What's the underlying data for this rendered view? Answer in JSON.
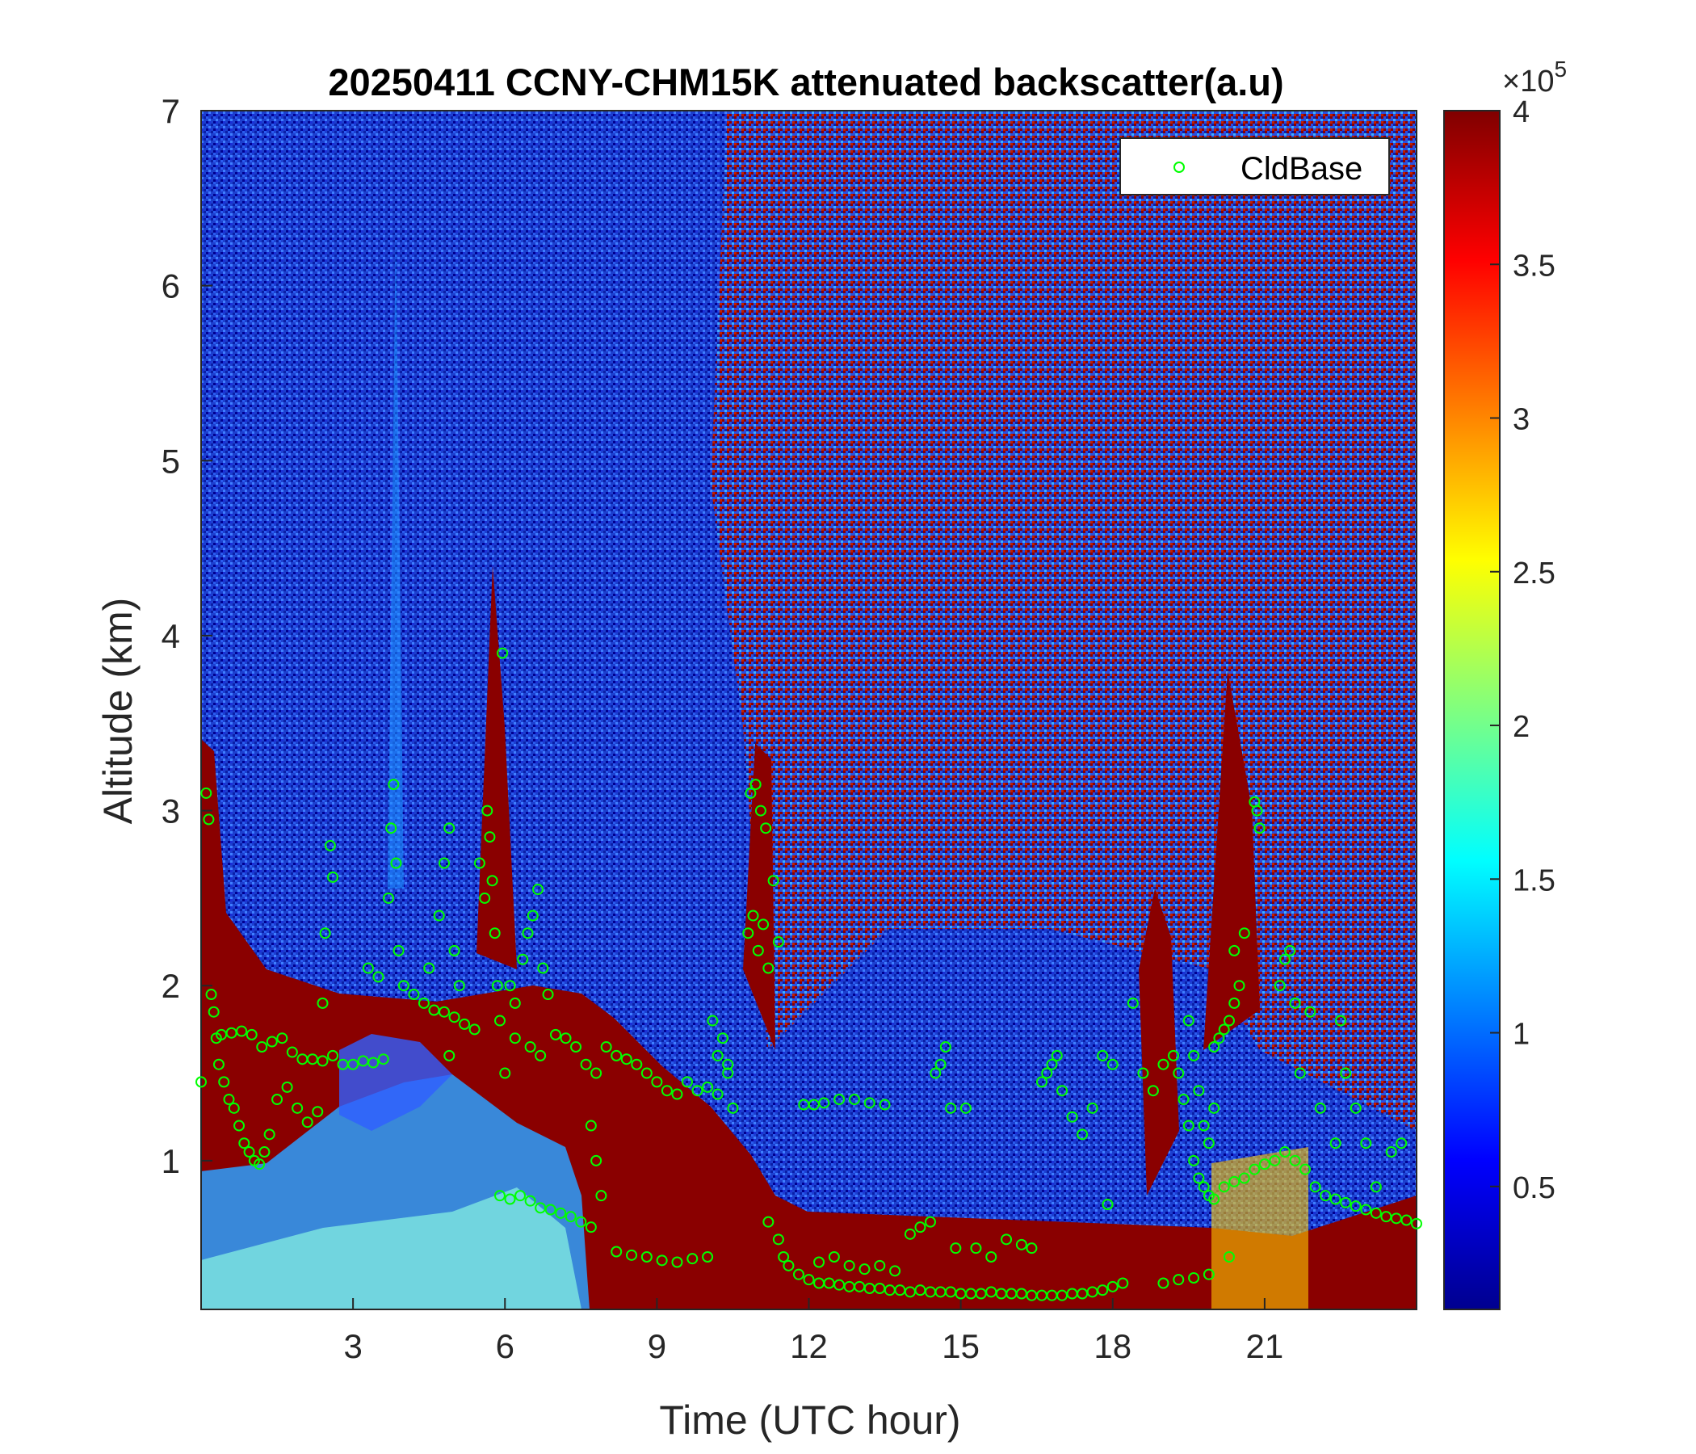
{
  "chart_data": {
    "type": "heatmap",
    "title": "20250411 CCNY-CHM15K attenuated backscatter(a.u)",
    "xlabel": "Time (UTC hour)",
    "ylabel": "Altitude (km)",
    "xlim": [
      0,
      24
    ],
    "ylim": [
      0.15,
      7
    ],
    "x_ticks": [
      3,
      6,
      9,
      12,
      15,
      18,
      21
    ],
    "x_tick_labels": [
      "3",
      "6",
      "9",
      "12",
      "15",
      "18",
      "21"
    ],
    "y_ticks": [
      1,
      2,
      3,
      4,
      5,
      6,
      7
    ],
    "y_tick_labels": [
      "1",
      "2",
      "3",
      "4",
      "5",
      "6",
      "7"
    ],
    "colorbar": {
      "colormap": "jet",
      "clim": [
        0.1,
        4.0
      ],
      "exponent_label": "×10",
      "exponent_power": "5",
      "ticks": [
        0.5,
        1,
        1.5,
        2,
        2.5,
        3,
        3.5,
        4
      ],
      "tick_labels": [
        "0.5",
        "1",
        "1.5",
        "2",
        "2.5",
        "3",
        "3.5",
        "4"
      ]
    },
    "legend": {
      "entries": [
        "CldBase"
      ],
      "location": "top-right"
    },
    "series": [
      {
        "name": "CldBase",
        "marker": "open-circle",
        "color": "#00ff00",
        "points": [
          [
            0.0,
            1.45
          ],
          [
            0.1,
            3.1
          ],
          [
            0.15,
            2.95
          ],
          [
            0.2,
            1.95
          ],
          [
            0.25,
            1.85
          ],
          [
            0.3,
            1.7
          ],
          [
            0.35,
            1.55
          ],
          [
            0.45,
            1.45
          ],
          [
            0.55,
            1.35
          ],
          [
            0.65,
            1.3
          ],
          [
            0.75,
            1.2
          ],
          [
            0.85,
            1.1
          ],
          [
            0.95,
            1.05
          ],
          [
            1.05,
            1.0
          ],
          [
            1.15,
            0.98
          ],
          [
            1.25,
            1.05
          ],
          [
            1.35,
            1.15
          ],
          [
            1.5,
            1.35
          ],
          [
            0.4,
            1.72
          ],
          [
            0.6,
            1.73
          ],
          [
            0.8,
            1.74
          ],
          [
            1.0,
            1.72
          ],
          [
            1.2,
            1.65
          ],
          [
            1.4,
            1.68
          ],
          [
            1.6,
            1.7
          ],
          [
            1.8,
            1.62
          ],
          [
            2.0,
            1.58
          ],
          [
            2.2,
            1.58
          ],
          [
            2.4,
            1.57
          ],
          [
            2.6,
            1.6
          ],
          [
            2.8,
            1.55
          ],
          [
            3.0,
            1.55
          ],
          [
            3.2,
            1.57
          ],
          [
            3.4,
            1.56
          ],
          [
            3.6,
            1.58
          ],
          [
            1.7,
            1.42
          ],
          [
            1.9,
            1.3
          ],
          [
            2.1,
            1.22
          ],
          [
            2.3,
            1.28
          ],
          [
            2.4,
            1.9
          ],
          [
            2.45,
            2.3
          ],
          [
            2.55,
            2.8
          ],
          [
            2.6,
            2.62
          ],
          [
            3.3,
            2.1
          ],
          [
            3.5,
            2.05
          ],
          [
            3.7,
            2.5
          ],
          [
            3.75,
            2.9
          ],
          [
            3.8,
            3.15
          ],
          [
            3.85,
            2.7
          ],
          [
            3.9,
            2.2
          ],
          [
            4.0,
            2.0
          ],
          [
            4.2,
            1.95
          ],
          [
            4.4,
            1.9
          ],
          [
            4.6,
            1.86
          ],
          [
            4.8,
            1.85
          ],
          [
            5.0,
            1.82
          ],
          [
            5.2,
            1.78
          ],
          [
            5.4,
            1.75
          ],
          [
            4.5,
            2.1
          ],
          [
            4.7,
            2.4
          ],
          [
            4.8,
            2.7
          ],
          [
            4.9,
            2.9
          ],
          [
            5.0,
            2.2
          ],
          [
            5.1,
            2.0
          ],
          [
            4.9,
            1.6
          ],
          [
            5.5,
            2.7
          ],
          [
            5.6,
            2.5
          ],
          [
            5.65,
            3.0
          ],
          [
            5.7,
            2.85
          ],
          [
            5.75,
            2.6
          ],
          [
            5.8,
            2.3
          ],
          [
            5.85,
            2.0
          ],
          [
            5.9,
            1.8
          ],
          [
            5.95,
            3.9
          ],
          [
            6.0,
            1.5
          ],
          [
            6.1,
            2.0
          ],
          [
            6.2,
            1.9
          ],
          [
            6.35,
            2.15
          ],
          [
            6.45,
            2.3
          ],
          [
            6.55,
            2.4
          ],
          [
            6.65,
            2.55
          ],
          [
            6.75,
            2.1
          ],
          [
            6.85,
            1.95
          ],
          [
            6.2,
            1.7
          ],
          [
            6.5,
            1.65
          ],
          [
            6.7,
            1.6
          ],
          [
            5.9,
            0.8
          ],
          [
            6.1,
            0.78
          ],
          [
            6.3,
            0.8
          ],
          [
            6.5,
            0.77
          ],
          [
            6.7,
            0.73
          ],
          [
            6.9,
            0.72
          ],
          [
            7.1,
            0.7
          ],
          [
            7.3,
            0.68
          ],
          [
            7.5,
            0.65
          ],
          [
            7.7,
            0.62
          ],
          [
            7.0,
            1.72
          ],
          [
            7.2,
            1.7
          ],
          [
            7.4,
            1.65
          ],
          [
            7.6,
            1.55
          ],
          [
            7.8,
            1.5
          ],
          [
            7.7,
            1.2
          ],
          [
            7.8,
            1.0
          ],
          [
            7.9,
            0.8
          ],
          [
            8.0,
            1.65
          ],
          [
            8.2,
            1.6
          ],
          [
            8.4,
            1.58
          ],
          [
            8.6,
            1.55
          ],
          [
            8.8,
            1.5
          ],
          [
            9.0,
            1.45
          ],
          [
            9.2,
            1.4
          ],
          [
            9.4,
            1.38
          ],
          [
            9.6,
            1.45
          ],
          [
            9.8,
            1.4
          ],
          [
            10.0,
            1.42
          ],
          [
            10.2,
            1.38
          ],
          [
            10.4,
            1.5
          ],
          [
            8.2,
            0.48
          ],
          [
            8.5,
            0.46
          ],
          [
            8.8,
            0.45
          ],
          [
            9.1,
            0.43
          ],
          [
            9.4,
            0.42
          ],
          [
            9.7,
            0.44
          ],
          [
            10.0,
            0.45
          ],
          [
            10.1,
            1.8
          ],
          [
            10.2,
            1.6
          ],
          [
            10.3,
            1.7
          ],
          [
            10.4,
            1.55
          ],
          [
            10.5,
            1.3
          ],
          [
            10.8,
            2.3
          ],
          [
            10.9,
            2.4
          ],
          [
            11.0,
            2.2
          ],
          [
            11.1,
            2.35
          ],
          [
            11.2,
            2.1
          ],
          [
            10.85,
            3.1
          ],
          [
            10.95,
            3.15
          ],
          [
            11.05,
            3.0
          ],
          [
            11.15,
            2.9
          ],
          [
            11.3,
            2.6
          ],
          [
            11.4,
            2.25
          ],
          [
            11.2,
            0.65
          ],
          [
            11.4,
            0.55
          ],
          [
            11.5,
            0.45
          ],
          [
            11.6,
            0.4
          ],
          [
            11.8,
            0.35
          ],
          [
            12.0,
            0.32
          ],
          [
            12.2,
            0.3
          ],
          [
            12.4,
            0.3
          ],
          [
            12.6,
            0.29
          ],
          [
            12.8,
            0.28
          ],
          [
            13.0,
            0.28
          ],
          [
            13.2,
            0.27
          ],
          [
            13.4,
            0.27
          ],
          [
            13.6,
            0.26
          ],
          [
            13.8,
            0.26
          ],
          [
            14.0,
            0.25
          ],
          [
            14.2,
            0.26
          ],
          [
            14.4,
            0.25
          ],
          [
            14.6,
            0.25
          ],
          [
            14.8,
            0.25
          ],
          [
            15.0,
            0.24
          ],
          [
            15.2,
            0.24
          ],
          [
            15.4,
            0.24
          ],
          [
            15.6,
            0.25
          ],
          [
            15.8,
            0.24
          ],
          [
            16.0,
            0.24
          ],
          [
            16.2,
            0.24
          ],
          [
            16.4,
            0.23
          ],
          [
            16.6,
            0.23
          ],
          [
            16.8,
            0.23
          ],
          [
            17.0,
            0.23
          ],
          [
            17.2,
            0.24
          ],
          [
            17.4,
            0.24
          ],
          [
            17.6,
            0.25
          ],
          [
            17.8,
            0.26
          ],
          [
            18.0,
            0.28
          ],
          [
            18.2,
            0.3
          ],
          [
            11.9,
            1.32
          ],
          [
            12.1,
            1.32
          ],
          [
            12.3,
            1.33
          ],
          [
            12.6,
            1.35
          ],
          [
            12.9,
            1.35
          ],
          [
            13.2,
            1.33
          ],
          [
            13.5,
            1.32
          ],
          [
            12.2,
            0.42
          ],
          [
            12.5,
            0.45
          ],
          [
            12.8,
            0.4
          ],
          [
            13.1,
            0.38
          ],
          [
            13.4,
            0.4
          ],
          [
            13.7,
            0.37
          ],
          [
            14.0,
            0.58
          ],
          [
            14.2,
            0.62
          ],
          [
            14.4,
            0.65
          ],
          [
            14.5,
            1.5
          ],
          [
            14.6,
            1.55
          ],
          [
            14.7,
            1.65
          ],
          [
            14.8,
            1.3
          ],
          [
            14.9,
            0.5
          ],
          [
            15.1,
            1.3
          ],
          [
            15.3,
            0.5
          ],
          [
            15.6,
            0.45
          ],
          [
            15.9,
            0.55
          ],
          [
            16.2,
            0.52
          ],
          [
            16.4,
            0.5
          ],
          [
            16.6,
            1.45
          ],
          [
            16.7,
            1.5
          ],
          [
            16.8,
            1.55
          ],
          [
            16.9,
            1.6
          ],
          [
            17.0,
            1.4
          ],
          [
            17.2,
            1.25
          ],
          [
            17.4,
            1.15
          ],
          [
            17.6,
            1.3
          ],
          [
            17.8,
            1.6
          ],
          [
            18.0,
            1.55
          ],
          [
            17.9,
            0.75
          ],
          [
            18.4,
            1.9
          ],
          [
            18.6,
            1.5
          ],
          [
            18.8,
            1.4
          ],
          [
            19.0,
            1.55
          ],
          [
            19.2,
            1.6
          ],
          [
            19.3,
            1.5
          ],
          [
            19.4,
            1.35
          ],
          [
            19.5,
            1.2
          ],
          [
            19.6,
            1.0
          ],
          [
            19.7,
            0.9
          ],
          [
            19.8,
            0.85
          ],
          [
            19.9,
            0.8
          ],
          [
            20.0,
            0.78
          ],
          [
            19.5,
            1.8
          ],
          [
            19.6,
            1.6
          ],
          [
            19.7,
            1.4
          ],
          [
            19.8,
            1.2
          ],
          [
            19.9,
            1.1
          ],
          [
            20.0,
            1.3
          ],
          [
            20.0,
            1.65
          ],
          [
            20.1,
            1.7
          ],
          [
            20.2,
            1.75
          ],
          [
            20.3,
            1.8
          ],
          [
            20.4,
            1.9
          ],
          [
            20.5,
            2.0
          ],
          [
            20.4,
            2.2
          ],
          [
            20.6,
            2.3
          ],
          [
            20.8,
            3.05
          ],
          [
            20.85,
            3.0
          ],
          [
            20.9,
            2.9
          ],
          [
            19.0,
            0.3
          ],
          [
            19.3,
            0.32
          ],
          [
            19.6,
            0.33
          ],
          [
            19.9,
            0.35
          ],
          [
            20.3,
            0.45
          ],
          [
            20.2,
            0.85
          ],
          [
            20.4,
            0.88
          ],
          [
            20.6,
            0.9
          ],
          [
            20.8,
            0.95
          ],
          [
            21.0,
            0.98
          ],
          [
            21.2,
            1.0
          ],
          [
            21.4,
            1.05
          ],
          [
            21.6,
            1.0
          ],
          [
            21.8,
            0.95
          ],
          [
            22.0,
            0.85
          ],
          [
            22.2,
            0.8
          ],
          [
            22.4,
            0.78
          ],
          [
            22.6,
            0.76
          ],
          [
            22.8,
            0.74
          ],
          [
            23.0,
            0.72
          ],
          [
            23.2,
            0.7
          ],
          [
            23.4,
            0.68
          ],
          [
            23.6,
            0.67
          ],
          [
            23.8,
            0.66
          ],
          [
            24.0,
            0.64
          ],
          [
            21.3,
            2.0
          ],
          [
            21.4,
            2.15
          ],
          [
            21.5,
            2.2
          ],
          [
            21.6,
            1.9
          ],
          [
            21.7,
            1.5
          ],
          [
            21.9,
            1.85
          ],
          [
            22.1,
            1.3
          ],
          [
            22.4,
            1.1
          ],
          [
            22.5,
            1.8
          ],
          [
            22.6,
            1.5
          ],
          [
            22.8,
            1.3
          ],
          [
            23.0,
            1.1
          ],
          [
            23.2,
            0.85
          ],
          [
            23.5,
            1.05
          ],
          [
            23.7,
            1.1
          ]
        ]
      }
    ]
  }
}
